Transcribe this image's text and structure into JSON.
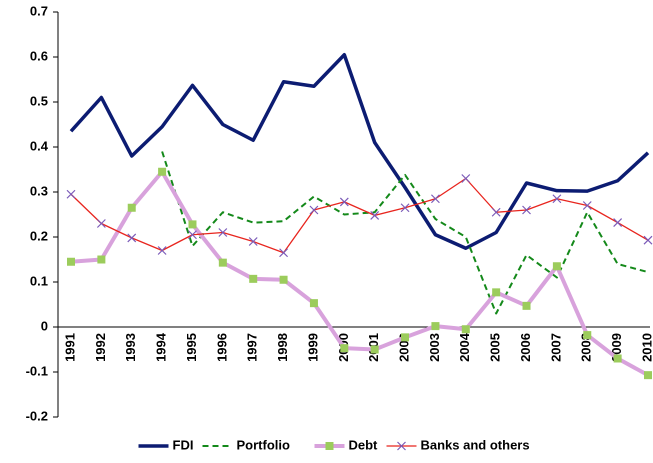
{
  "chart_data": {
    "type": "line",
    "categories": [
      "1991",
      "1992",
      "1993",
      "1994",
      "1995",
      "1996",
      "1997",
      "1998",
      "1999",
      "2000",
      "2001",
      "2002",
      "2003",
      "2004",
      "2005",
      "2006",
      "2007",
      "2008",
      "2009",
      "2010"
    ],
    "ylim": [
      -0.2,
      0.7
    ],
    "yticks": [
      0.7,
      0.6,
      0.5,
      0.4,
      0.3,
      0.2,
      0.1,
      0,
      -0.1,
      -0.2
    ],
    "grid": false,
    "legend": "bottom",
    "series": [
      {
        "name": "FDI",
        "color": "#0c1c72",
        "width": 3.5,
        "dash": false,
        "marker": "none",
        "values": [
          0.435,
          0.51,
          0.38,
          0.445,
          0.537,
          0.45,
          0.415,
          0.545,
          0.535,
          0.605,
          0.41,
          0.31,
          0.205,
          0.175,
          0.21,
          0.32,
          0.303,
          0.302,
          0.325,
          0.387
        ]
      },
      {
        "name": "Portfolio",
        "color": "#14891a",
        "width": 2,
        "dash": true,
        "marker": "none",
        "values": [
          null,
          null,
          null,
          0.39,
          0.18,
          0.255,
          0.232,
          0.235,
          0.29,
          0.25,
          0.255,
          0.338,
          0.24,
          0.2,
          0.03,
          0.16,
          0.11,
          0.255,
          0.14,
          0.122
        ]
      },
      {
        "name": "Debt",
        "color": "#d8a2dc",
        "width": 4,
        "dash": false,
        "marker": "square",
        "marker_color": "#9ccc5c",
        "values": [
          0.145,
          0.15,
          0.265,
          0.345,
          0.228,
          0.143,
          0.107,
          0.105,
          0.053,
          -0.047,
          -0.05,
          -0.023,
          0.002,
          -0.005,
          0.077,
          0.047,
          0.135,
          -0.018,
          -0.07,
          -0.107
        ]
      },
      {
        "name": "Banks and others",
        "color": "#e8251e",
        "width": 1.3,
        "dash": false,
        "marker": "x",
        "marker_color": "#7a5ab8",
        "values": [
          0.295,
          0.23,
          0.198,
          0.17,
          0.205,
          0.21,
          0.19,
          0.165,
          0.26,
          0.278,
          0.248,
          0.265,
          0.285,
          0.33,
          0.255,
          0.26,
          0.285,
          0.27,
          0.232,
          0.193
        ]
      }
    ]
  }
}
